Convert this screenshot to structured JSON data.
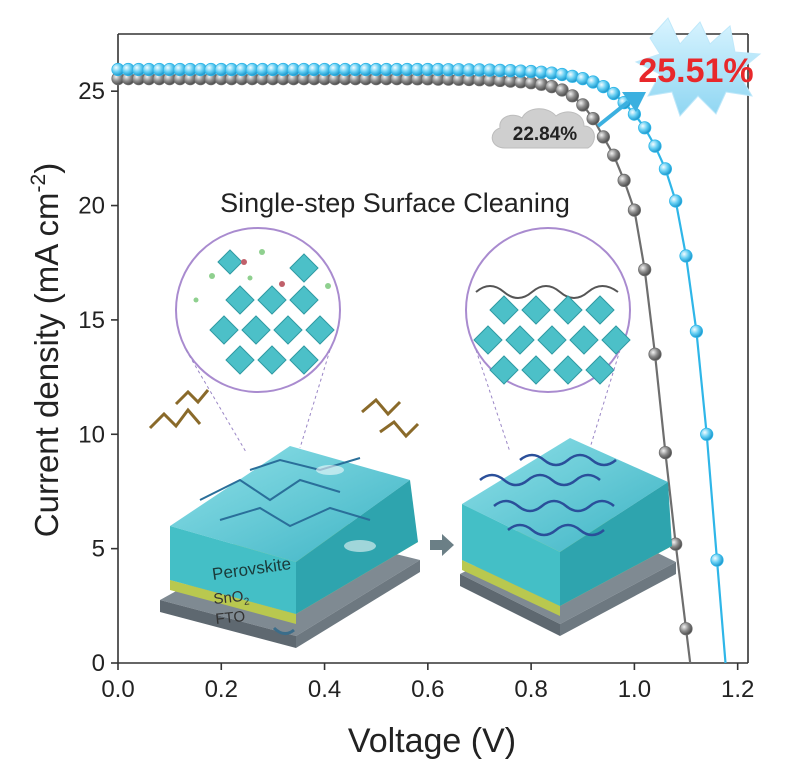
{
  "chart_data": {
    "type": "line",
    "xlabel": "Voltage (V)",
    "ylabel_main": "Current density (mA cm",
    "ylabel_sup": "-2",
    "ylabel_close": ")",
    "xlim": [
      0.0,
      1.22
    ],
    "ylim": [
      0,
      27.5
    ],
    "xticks": [
      0.0,
      0.2,
      0.4,
      0.6,
      0.8,
      1.0,
      1.2
    ],
    "xtick_labels": [
      "0.0",
      "0.2",
      "0.4",
      "0.6",
      "0.8",
      "1.0",
      "1.2"
    ],
    "yticks": [
      0,
      5,
      10,
      15,
      20,
      25
    ],
    "ytick_labels": [
      "0",
      "5",
      "10",
      "15",
      "20",
      "25"
    ],
    "series": [
      {
        "color": "#6e6e6e",
        "x": [
          0.0,
          0.02,
          0.04,
          0.06,
          0.08,
          0.1,
          0.12,
          0.14,
          0.16,
          0.18,
          0.2,
          0.22,
          0.24,
          0.26,
          0.28,
          0.3,
          0.32,
          0.34,
          0.36,
          0.38,
          0.4,
          0.42,
          0.44,
          0.46,
          0.48,
          0.5,
          0.52,
          0.54,
          0.56,
          0.58,
          0.6,
          0.62,
          0.64,
          0.66,
          0.68,
          0.7,
          0.72,
          0.74,
          0.76,
          0.78,
          0.8,
          0.82,
          0.84,
          0.86,
          0.88,
          0.9,
          0.92,
          0.94,
          0.96,
          0.98,
          1.0,
          1.02,
          1.04,
          1.06,
          1.08,
          1.1
        ],
        "y": [
          25.55,
          25.55,
          25.55,
          25.55,
          25.55,
          25.55,
          25.55,
          25.55,
          25.55,
          25.55,
          25.55,
          25.55,
          25.55,
          25.55,
          25.55,
          25.55,
          25.55,
          25.55,
          25.55,
          25.55,
          25.55,
          25.55,
          25.55,
          25.55,
          25.55,
          25.55,
          25.55,
          25.55,
          25.54,
          25.54,
          25.54,
          25.53,
          25.53,
          25.52,
          25.51,
          25.5,
          25.49,
          25.47,
          25.44,
          25.41,
          25.37,
          25.3,
          25.2,
          25.05,
          24.8,
          24.4,
          23.8,
          23.0,
          22.2,
          21.1,
          19.8,
          17.2,
          13.5,
          9.2,
          5.2,
          1.5
        ]
      },
      {
        "color": "#2fb6e8",
        "x": [
          0.0,
          0.02,
          0.04,
          0.06,
          0.08,
          0.1,
          0.12,
          0.14,
          0.16,
          0.18,
          0.2,
          0.22,
          0.24,
          0.26,
          0.28,
          0.3,
          0.32,
          0.34,
          0.36,
          0.38,
          0.4,
          0.42,
          0.44,
          0.46,
          0.48,
          0.5,
          0.52,
          0.54,
          0.56,
          0.58,
          0.6,
          0.62,
          0.64,
          0.66,
          0.68,
          0.7,
          0.72,
          0.74,
          0.76,
          0.78,
          0.8,
          0.82,
          0.84,
          0.86,
          0.88,
          0.9,
          0.92,
          0.94,
          0.96,
          0.98,
          1.0,
          1.02,
          1.04,
          1.06,
          1.08,
          1.1,
          1.12,
          1.14,
          1.16
        ],
        "y": [
          25.95,
          25.95,
          25.95,
          25.95,
          25.95,
          25.95,
          25.95,
          25.95,
          25.95,
          25.95,
          25.95,
          25.95,
          25.95,
          25.95,
          25.95,
          25.95,
          25.95,
          25.95,
          25.95,
          25.95,
          25.95,
          25.95,
          25.95,
          25.95,
          25.95,
          25.95,
          25.95,
          25.95,
          25.95,
          25.95,
          25.95,
          25.95,
          25.94,
          25.94,
          25.93,
          25.93,
          25.92,
          25.91,
          25.9,
          25.88,
          25.86,
          25.83,
          25.79,
          25.73,
          25.65,
          25.55,
          25.4,
          25.2,
          24.9,
          24.5,
          24.0,
          23.4,
          22.6,
          21.6,
          20.2,
          17.8,
          14.5,
          10.0,
          4.5
        ]
      }
    ],
    "annotations": {
      "efficiency_high": "25.51%",
      "efficiency_low": "22.84%",
      "inset_title": "Single-step Surface Cleaning",
      "layer_perovskite": "Perovskite",
      "layer_sno2": "SnO",
      "layer_sno2_sub": "2",
      "layer_fto": "FTO"
    }
  }
}
